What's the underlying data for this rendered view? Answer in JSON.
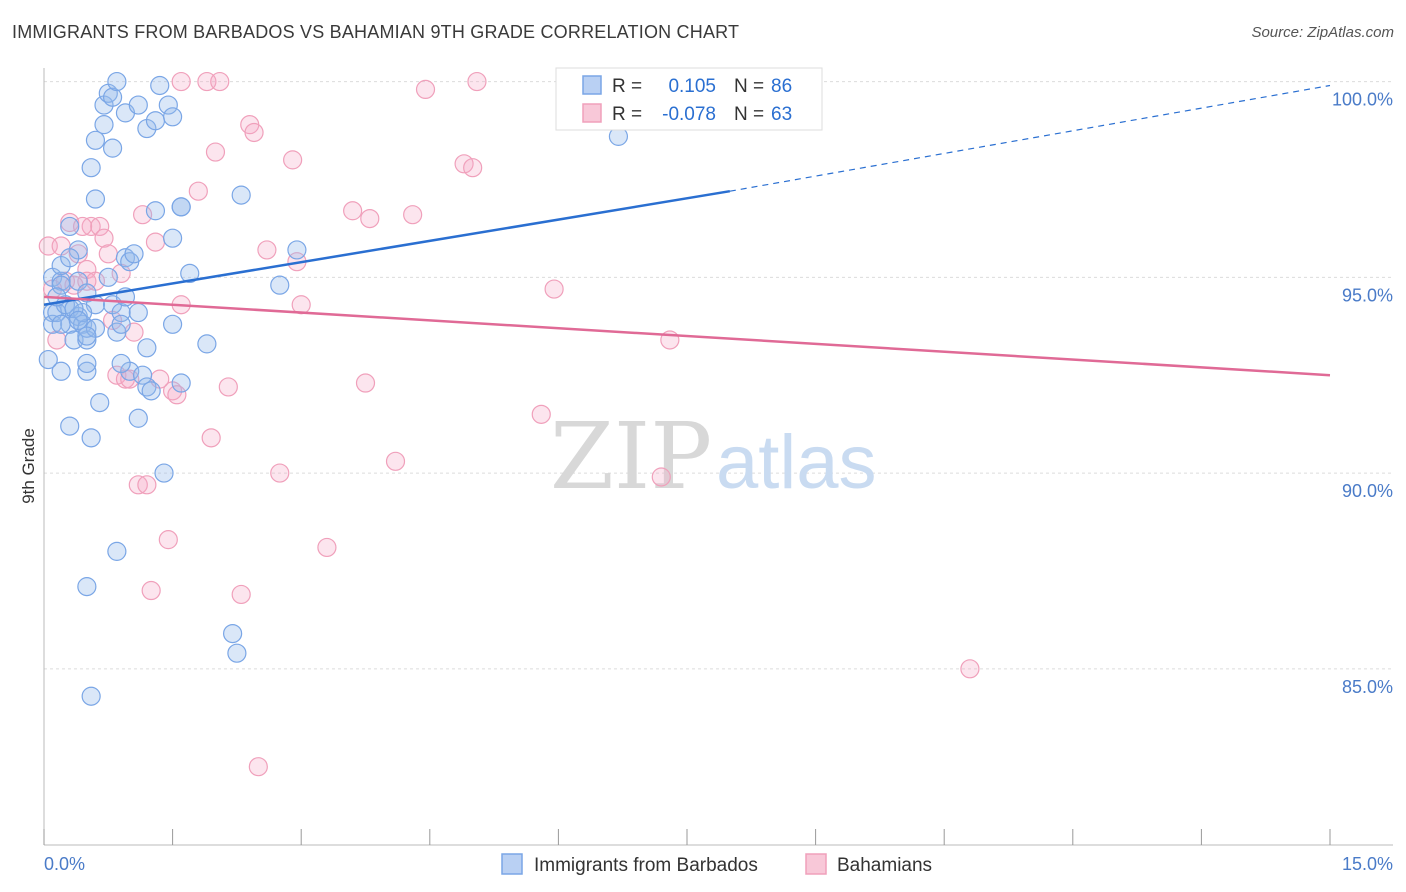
{
  "chart_data": {
    "type": "scatter",
    "title": "IMMIGRANTS FROM BARBADOS VS BAHAMIAN 9TH GRADE CORRELATION CHART",
    "source": "Source: ZipAtlas.com",
    "xlabel": "",
    "ylabel": "9th Grade",
    "xlim": [
      0,
      15
    ],
    "ylim": [
      80.5,
      100.5
    ],
    "x_tick_labels": [
      "0.0%",
      "15.0%"
    ],
    "y_ticks": [
      85,
      90,
      95,
      100
    ],
    "y_tick_labels": [
      "85.0%",
      "90.0%",
      "95.0%",
      "100.0%"
    ],
    "watermark": {
      "part1": "ZIP",
      "part2": "atlas"
    },
    "legend": {
      "rows": [
        {
          "r_label": "R =",
          "r_value": "0.105",
          "n_label": "N =",
          "n_value": "86"
        },
        {
          "r_label": "R =",
          "r_value": "-0.078",
          "n_label": "N =",
          "n_value": "63"
        }
      ]
    },
    "series": [
      {
        "name": "Immigrants from Barbados",
        "color": "#7aa6e6",
        "line_color": "#2a6fd1",
        "trend": {
          "x0": 0,
          "y0": 94.3,
          "x1": 8.0,
          "y1": 97.2,
          "dash_x1": 15.0,
          "dash_y1": 99.9
        },
        "points": [
          [
            0.1,
            94.1
          ],
          [
            0.1,
            95.0
          ],
          [
            0.1,
            93.8
          ],
          [
            0.2,
            94.9
          ],
          [
            0.2,
            95.3
          ],
          [
            0.2,
            92.6
          ],
          [
            0.3,
            94.2
          ],
          [
            0.3,
            93.8
          ],
          [
            0.3,
            96.3
          ],
          [
            0.3,
            91.2
          ],
          [
            0.35,
            93.4
          ],
          [
            0.4,
            94.0
          ],
          [
            0.4,
            95.7
          ],
          [
            0.4,
            94.9
          ],
          [
            0.45,
            93.8
          ],
          [
            0.5,
            92.6
          ],
          [
            0.5,
            92.8
          ],
          [
            0.5,
            94.6
          ],
          [
            0.5,
            93.4
          ],
          [
            0.5,
            93.7
          ],
          [
            0.55,
            97.8
          ],
          [
            0.55,
            90.9
          ],
          [
            0.6,
            98.5
          ],
          [
            0.6,
            97.0
          ],
          [
            0.6,
            94.3
          ],
          [
            0.65,
            91.8
          ],
          [
            0.7,
            99.4
          ],
          [
            0.7,
            98.9
          ],
          [
            0.75,
            99.7
          ],
          [
            0.75,
            95.0
          ],
          [
            0.8,
            99.6
          ],
          [
            0.8,
            98.3
          ],
          [
            0.8,
            94.3
          ],
          [
            0.85,
            100.0
          ],
          [
            0.85,
            93.6
          ],
          [
            0.9,
            94.1
          ],
          [
            0.9,
            93.8
          ],
          [
            0.95,
            99.2
          ],
          [
            0.95,
            95.5
          ],
          [
            0.95,
            94.5
          ],
          [
            1.0,
            95.4
          ],
          [
            1.0,
            92.6
          ],
          [
            1.05,
            95.6
          ],
          [
            1.1,
            94.1
          ],
          [
            1.1,
            99.4
          ],
          [
            1.1,
            91.4
          ],
          [
            1.15,
            92.5
          ],
          [
            1.2,
            98.8
          ],
          [
            1.2,
            92.2
          ],
          [
            1.25,
            92.1
          ],
          [
            1.3,
            96.7
          ],
          [
            1.3,
            99.0
          ],
          [
            1.35,
            99.9
          ],
          [
            1.4,
            90.0
          ],
          [
            1.45,
            99.4
          ],
          [
            1.5,
            99.1
          ],
          [
            1.5,
            96.0
          ],
          [
            1.5,
            93.8
          ],
          [
            1.6,
            96.8
          ],
          [
            1.6,
            92.3
          ],
          [
            1.7,
            95.1
          ],
          [
            1.9,
            93.3
          ],
          [
            2.2,
            85.9
          ],
          [
            2.25,
            85.4
          ],
          [
            2.3,
            97.1
          ],
          [
            2.75,
            94.8
          ],
          [
            2.95,
            95.7
          ],
          [
            6.7,
            98.6
          ],
          [
            0.85,
            88.0
          ],
          [
            0.5,
            87.1
          ],
          [
            0.55,
            84.3
          ],
          [
            0.15,
            94.1
          ],
          [
            0.2,
            93.8
          ],
          [
            0.25,
            94.3
          ],
          [
            0.45,
            94.1
          ],
          [
            0.6,
            93.7
          ],
          [
            0.35,
            94.2
          ],
          [
            0.3,
            95.5
          ],
          [
            0.2,
            94.8
          ],
          [
            0.4,
            93.9
          ],
          [
            0.5,
            93.5
          ],
          [
            0.9,
            92.8
          ],
          [
            1.2,
            93.2
          ],
          [
            1.6,
            96.8
          ],
          [
            0.15,
            94.5
          ],
          [
            0.05,
            92.9
          ]
        ]
      },
      {
        "name": "Bahamians",
        "color": "#f0a0bb",
        "line_color": "#e06a96",
        "trend": {
          "x0": 0,
          "y0": 94.5,
          "x1": 15.0,
          "y1": 92.5
        },
        "points": [
          [
            0.05,
            95.8
          ],
          [
            0.1,
            94.7
          ],
          [
            0.2,
            95.8
          ],
          [
            0.25,
            94.9
          ],
          [
            0.3,
            96.4
          ],
          [
            0.35,
            94.8
          ],
          [
            0.4,
            95.6
          ],
          [
            0.5,
            95.2
          ],
          [
            0.5,
            94.9
          ],
          [
            0.55,
            96.3
          ],
          [
            0.6,
            94.9
          ],
          [
            0.65,
            96.3
          ],
          [
            0.7,
            96.0
          ],
          [
            0.75,
            95.6
          ],
          [
            0.8,
            93.9
          ],
          [
            0.85,
            92.5
          ],
          [
            0.9,
            95.1
          ],
          [
            0.95,
            92.4
          ],
          [
            1.0,
            92.4
          ],
          [
            1.05,
            93.6
          ],
          [
            1.1,
            89.7
          ],
          [
            1.15,
            96.6
          ],
          [
            1.2,
            89.7
          ],
          [
            1.25,
            87.0
          ],
          [
            1.3,
            95.9
          ],
          [
            1.35,
            92.4
          ],
          [
            1.45,
            88.3
          ],
          [
            1.5,
            92.1
          ],
          [
            1.55,
            92.0
          ],
          [
            1.6,
            94.3
          ],
          [
            1.6,
            100.0
          ],
          [
            1.8,
            97.2
          ],
          [
            1.9,
            100.0
          ],
          [
            1.95,
            90.9
          ],
          [
            2.0,
            98.2
          ],
          [
            2.05,
            100.0
          ],
          [
            2.15,
            92.2
          ],
          [
            2.3,
            86.9
          ],
          [
            2.4,
            98.9
          ],
          [
            2.45,
            98.7
          ],
          [
            2.5,
            82.5
          ],
          [
            2.6,
            95.7
          ],
          [
            2.75,
            90.0
          ],
          [
            2.9,
            98.0
          ],
          [
            2.95,
            95.4
          ],
          [
            3.0,
            94.3
          ],
          [
            3.3,
            88.1
          ],
          [
            3.6,
            96.7
          ],
          [
            3.75,
            92.3
          ],
          [
            3.8,
            96.5
          ],
          [
            4.1,
            90.3
          ],
          [
            4.3,
            96.6
          ],
          [
            4.45,
            99.8
          ],
          [
            4.9,
            97.9
          ],
          [
            5.0,
            97.8
          ],
          [
            5.05,
            100.0
          ],
          [
            5.8,
            91.5
          ],
          [
            5.95,
            94.7
          ],
          [
            7.2,
            89.9
          ],
          [
            7.3,
            93.4
          ],
          [
            10.8,
            85.0
          ],
          [
            0.15,
            93.4
          ],
          [
            0.45,
            96.3
          ]
        ]
      }
    ]
  }
}
